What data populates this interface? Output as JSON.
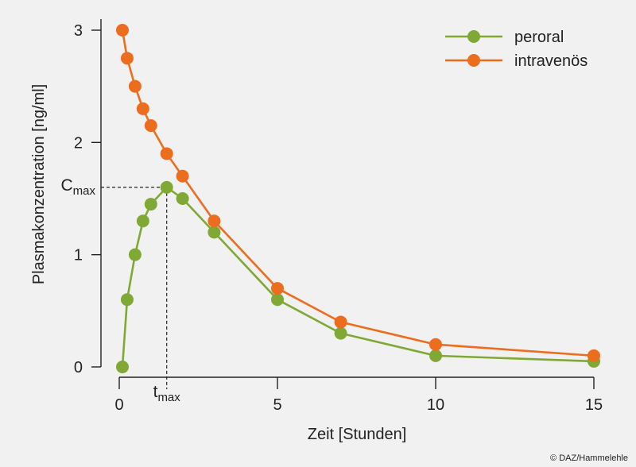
{
  "chart_data": {
    "type": "line",
    "xlabel": "Zeit [Stunden]",
    "ylabel": "Plasmakonzentration [ng/ml]",
    "xlim": [
      0,
      15
    ],
    "ylim": [
      0,
      3
    ],
    "x_ticks": [
      "0",
      "5",
      "10",
      "15"
    ],
    "y_ticks": [
      "0",
      "1",
      "2",
      "3"
    ],
    "legend_position": "top-right",
    "grid": false,
    "series": [
      {
        "name": "peroral",
        "color": "#7fa934",
        "x": [
          0.1,
          0.25,
          0.5,
          0.75,
          1.0,
          1.5,
          2.0,
          3.0,
          5.0,
          7.0,
          10.0,
          15.0
        ],
        "y": [
          0.0,
          0.6,
          1.0,
          1.3,
          1.45,
          1.6,
          1.5,
          1.2,
          0.6,
          0.3,
          0.1,
          0.05
        ]
      },
      {
        "name": "intravenös",
        "color": "#ec6d1e",
        "x": [
          0.1,
          0.25,
          0.5,
          0.75,
          1.0,
          1.5,
          2.0,
          3.0,
          5.0,
          7.0,
          10.0,
          15.0
        ],
        "y": [
          3.0,
          2.75,
          2.5,
          2.3,
          2.15,
          1.9,
          1.7,
          1.3,
          0.7,
          0.4,
          0.2,
          0.1
        ]
      }
    ],
    "annotations": {
      "cmax": {
        "base": "C",
        "sub": "max",
        "value": 1.6
      },
      "tmax": {
        "base": "t",
        "sub": "max",
        "value": 1.5
      }
    },
    "credit": "© DAZ/Hammelehle"
  }
}
